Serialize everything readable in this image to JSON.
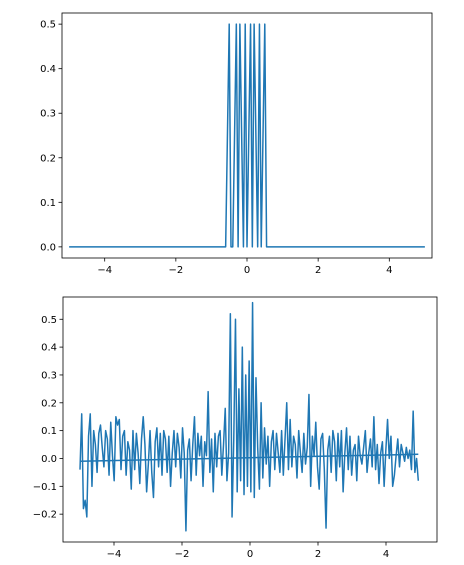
{
  "chart_data": [
    {
      "type": "line",
      "title": "",
      "xlabel": "",
      "ylabel": "",
      "xlim": [
        -5.2,
        5.2
      ],
      "ylim": [
        -0.025,
        0.525
      ],
      "xticks": [
        -4,
        -2,
        0,
        2,
        4
      ],
      "yticks": [
        0.0,
        0.1,
        0.2,
        0.3,
        0.4,
        0.5
      ],
      "xtick_labels": [
        "−4",
        "−2",
        "0",
        "2",
        "4"
      ],
      "ytick_labels": [
        "0.0",
        "0.1",
        "0.2",
        "0.3",
        "0.4",
        "0.5"
      ],
      "grid": false,
      "color": "#1f77b4",
      "series": [
        {
          "x": [
            -5.0,
            -0.6,
            -0.5,
            -0.45,
            -0.4,
            -0.3,
            -0.25,
            -0.2,
            -0.1,
            -0.05,
            0.0,
            0.1,
            0.15,
            0.2,
            0.3,
            0.35,
            0.4,
            0.5,
            0.55,
            5.0
          ],
          "y": [
            0.0,
            0.0,
            0.5,
            0.0,
            0.0,
            0.5,
            0.0,
            0.5,
            0.0,
            0.5,
            0.0,
            0.5,
            0.0,
            0.5,
            0.0,
            0.5,
            0.0,
            0.5,
            0.0,
            0.0
          ]
        }
      ]
    },
    {
      "type": "line",
      "title": "",
      "xlabel": "",
      "ylabel": "",
      "xlim": [
        -5.5,
        5.5
      ],
      "ylim": [
        -0.3,
        0.58
      ],
      "xticks": [
        -4,
        -2,
        0,
        2,
        4
      ],
      "yticks": [
        -0.2,
        -0.1,
        0.0,
        0.1,
        0.2,
        0.3,
        0.4,
        0.5
      ],
      "xtick_labels": [
        "−4",
        "−2",
        "0",
        "2",
        "4"
      ],
      "ytick_labels": [
        "−0.2",
        "−0.1",
        "0.0",
        "0.1",
        "0.2",
        "0.3",
        "0.4",
        "0.5"
      ],
      "grid": false,
      "color": "#1f77b4",
      "series": [
        {
          "x_start": -5.0,
          "x_end": 4.95,
          "y": [
            -0.04,
            0.16,
            -0.18,
            -0.15,
            -0.21,
            0.08,
            0.16,
            -0.1,
            0.1,
            0.05,
            -0.05,
            0.09,
            0.12,
            0.04,
            -0.03,
            0.1,
            0.07,
            -0.06,
            0.13,
            0.01,
            -0.08,
            0.15,
            0.12,
            0.14,
            -0.04,
            0.08,
            0.1,
            -0.06,
            0.06,
            0.03,
            -0.11,
            0.1,
            -0.04,
            0.09,
            0.02,
            -0.09,
            0.07,
            0.15,
            0.05,
            -0.12,
            -0.02,
            0.1,
            -0.05,
            -0.14,
            0.06,
            0.11,
            -0.03,
            0.09,
            -0.06,
            0.1,
            0.07,
            -0.05,
            0.08,
            -0.1,
            0.02,
            0.1,
            -0.03,
            0.09,
            0.04,
            -0.07,
            0.11,
            0.02,
            -0.26,
            0.03,
            0.07,
            -0.08,
            0.05,
            0.15,
            -0.06,
            0.09,
            0.01,
            0.08,
            -0.1,
            0.06,
            0.01,
            0.24,
            -0.05,
            0.07,
            -0.12,
            0.09,
            -0.03,
            0.08,
            0.1,
            -0.06,
            0.05,
            0.18,
            -0.08,
            0.02,
            0.52,
            -0.21,
            0.07,
            0.5,
            -0.12,
            0.25,
            -0.08,
            0.4,
            -0.13,
            0.3,
            -0.1,
            0.35,
            -0.12,
            0.56,
            -0.14,
            0.29,
            0.04,
            -0.11,
            0.2,
            -0.07,
            0.11,
            -0.02,
            0.08,
            -0.1,
            0.06,
            0.1,
            -0.04,
            0.09,
            0.02,
            -0.05,
            0.1,
            -0.06,
            0.07,
            0.2,
            -0.04,
            0.14,
            -0.03,
            0.08,
            0.05,
            -0.07,
            0.1,
            0.02,
            -0.05,
            0.09,
            -0.02,
            0.04,
            0.23,
            -0.1,
            0.08,
            0.01,
            0.13,
            -0.03,
            -0.11,
            0.07,
            0.09,
            -0.04,
            -0.25,
            0.03,
            0.08,
            -0.05,
            0.1,
            0.06,
            -0.08,
            0.09,
            -0.03,
            0.1,
            -0.12,
            0.02,
            0.11,
            -0.04,
            0.08,
            -0.06,
            0.03,
            0.05,
            -0.08,
            0.08,
            0.01,
            -0.02,
            0.04,
            0.1,
            -0.05,
            0.02,
            0.07,
            -0.03,
            0.15,
            -0.04,
            0.05,
            -0.09,
            0.02,
            0.06,
            -0.1,
            0.03,
            0.14,
            0.0,
            0.08,
            -0.1,
            -0.06,
            0.01,
            0.07,
            -0.03,
            0.05,
            0.02,
            -0.01,
            0.04,
            0.0,
            0.03,
            -0.04,
            0.17,
            -0.05,
            0.0,
            -0.08
          ]
        },
        {
          "x": [
            -5.0,
            4.95
          ],
          "y": [
            -0.01,
            0.015
          ]
        }
      ]
    }
  ]
}
